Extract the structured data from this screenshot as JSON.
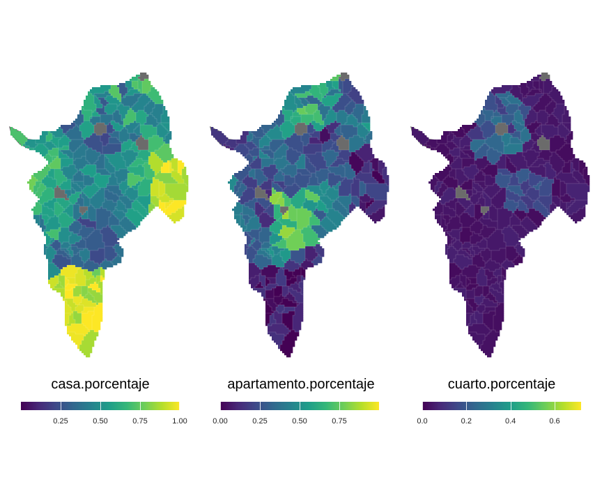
{
  "panels": [
    {
      "id": "casa",
      "legend_title": "casa.porcentaje",
      "scale": {
        "min": 0.0,
        "max": 1.0
      },
      "ticks": [
        "0.25",
        "0.50",
        "0.75",
        "1.00"
      ],
      "tick_values": [
        0.25,
        0.5,
        0.75,
        1.0
      ],
      "palette": "viridis"
    },
    {
      "id": "apartamento",
      "legend_title": "apartamento.porcentaje",
      "scale": {
        "min": 0.0,
        "max": 1.0
      },
      "ticks": [
        "0.00",
        "0.25",
        "0.50",
        "0.75"
      ],
      "tick_values": [
        0.0,
        0.25,
        0.5,
        0.75
      ],
      "palette": "viridis"
    },
    {
      "id": "cuarto",
      "legend_title": "cuarto.porcentaje",
      "scale": {
        "min": 0.0,
        "max": 0.72
      },
      "ticks": [
        "0.0",
        "0.2",
        "0.4",
        "0.6"
      ],
      "tick_values": [
        0.0,
        0.2,
        0.4,
        0.6
      ],
      "palette": "viridis"
    }
  ],
  "colors": {
    "viridis": [
      "#440154",
      "#482878",
      "#3e4989",
      "#31688e",
      "#26828e",
      "#1f9e89",
      "#35b779",
      "#6ece58",
      "#b5de2b",
      "#fde725"
    ],
    "missing": "#6b6b6b",
    "border": "#ffffff"
  }
}
